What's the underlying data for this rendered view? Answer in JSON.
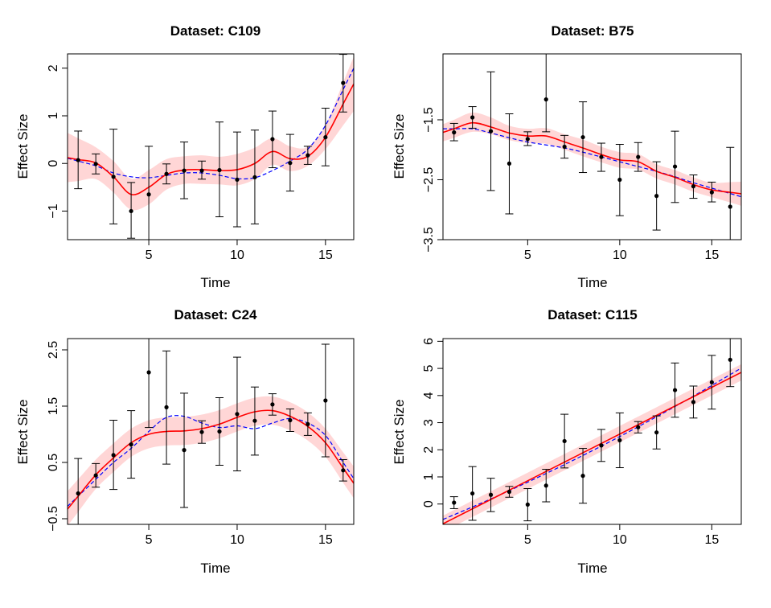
{
  "figure": {
    "layout": "2x2 grid of panels"
  },
  "colors": {
    "band": "#ffd6d6",
    "fit": "#ff0000",
    "truth": "#0000ff",
    "points": "#000000",
    "errorbars": "#000000"
  },
  "chart_data": [
    {
      "type": "line",
      "title": "Dataset: C109",
      "xlabel": "Time",
      "ylabel": "Effect Size",
      "xlim": [
        0.4,
        16.6
      ],
      "ylim": [
        -1.6,
        2.3
      ],
      "xticks": [
        5,
        10,
        15
      ],
      "yticks": [
        -1,
        0,
        1,
        2
      ],
      "ytick_labels": [
        "−1",
        "0",
        "1",
        "2"
      ],
      "grid": false,
      "legend": "none",
      "x": [
        1,
        2,
        3,
        4,
        5,
        6,
        7,
        8,
        9,
        10,
        11,
        12,
        13,
        14,
        15,
        16
      ],
      "points": [
        0.07,
        -0.01,
        -0.28,
        -1.0,
        -0.65,
        -0.22,
        -0.15,
        -0.15,
        -0.14,
        -0.34,
        -0.29,
        0.51,
        0.01,
        0.17,
        0.55,
        1.69
      ],
      "err_low": [
        -0.53,
        -0.22,
        -1.27,
        -1.57,
        -1.62,
        -0.43,
        -0.74,
        -0.33,
        -1.12,
        -1.33,
        -1.27,
        -0.09,
        -0.58,
        -0.02,
        -0.05,
        1.08
      ],
      "err_high": [
        0.68,
        0.2,
        0.72,
        -0.4,
        0.36,
        -0.01,
        0.45,
        0.05,
        0.87,
        0.66,
        0.7,
        1.1,
        0.61,
        0.36,
        1.16,
        2.29
      ],
      "series": [
        {
          "name": "fit",
          "style": "solid",
          "color": "#ff0000",
          "values": [
            0.08,
            0.01,
            -0.28,
            -0.65,
            -0.5,
            -0.23,
            -0.14,
            -0.13,
            -0.15,
            -0.13,
            0.0,
            0.25,
            0.1,
            0.15,
            0.55,
            1.25
          ]
        },
        {
          "name": "truth",
          "style": "dashed",
          "color": "#0000ff",
          "values": [
            0.05,
            -0.05,
            -0.2,
            -0.28,
            -0.3,
            -0.25,
            -0.2,
            -0.2,
            -0.25,
            -0.32,
            -0.3,
            -0.15,
            0.05,
            0.3,
            0.8,
            1.55
          ]
        }
      ],
      "band_low": [
        -0.37,
        -0.33,
        -0.61,
        -0.97,
        -0.86,
        -0.55,
        -0.43,
        -0.43,
        -0.44,
        -0.46,
        -0.33,
        -0.03,
        -0.16,
        -0.05,
        0.3,
        0.8
      ],
      "band_high": [
        0.53,
        0.34,
        0.05,
        -0.32,
        -0.14,
        0.09,
        0.15,
        0.17,
        0.14,
        0.2,
        0.33,
        0.53,
        0.36,
        0.35,
        0.8,
        1.7
      ]
    },
    {
      "type": "line",
      "title": "Dataset: B75",
      "xlabel": "Time",
      "ylabel": "Effect Size",
      "xlim": [
        0.4,
        16.6
      ],
      "ylim": [
        -3.5,
        -0.4
      ],
      "xticks": [
        5,
        10,
        15
      ],
      "yticks": [
        -3.5,
        -2.5,
        -1.5
      ],
      "ytick_labels": [
        "−3.5",
        "−2.5",
        "−1.5"
      ],
      "grid": false,
      "legend": "none",
      "x": [
        1,
        2,
        3,
        4,
        5,
        6,
        7,
        8,
        9,
        10,
        11,
        12,
        13,
        14,
        15,
        16
      ],
      "points": [
        -1.71,
        -1.46,
        -1.69,
        -2.23,
        -1.82,
        -1.16,
        -1.95,
        -1.79,
        -2.12,
        -2.5,
        -2.12,
        -2.77,
        -2.28,
        -2.61,
        -2.71,
        -2.95
      ],
      "err_low": [
        -1.85,
        -1.64,
        -2.68,
        -3.07,
        -1.93,
        -1.7,
        -2.14,
        -2.38,
        -2.36,
        -3.1,
        -2.36,
        -3.34,
        -2.88,
        -2.81,
        -2.87,
        -3.53
      ],
      "err_high": [
        -1.56,
        -1.28,
        -0.7,
        -1.4,
        -1.7,
        -0.4,
        -1.76,
        -1.2,
        -1.89,
        -1.91,
        -1.88,
        -2.2,
        -1.69,
        -2.42,
        -2.54,
        -1.96
      ],
      "series": [
        {
          "name": "fit",
          "style": "solid",
          "color": "#ff0000",
          "values": [
            -1.65,
            -1.55,
            -1.62,
            -1.72,
            -1.77,
            -1.77,
            -1.87,
            -1.97,
            -2.08,
            -2.17,
            -2.2,
            -2.36,
            -2.46,
            -2.58,
            -2.67,
            -2.71
          ]
        },
        {
          "name": "truth",
          "style": "dashed",
          "color": "#0000ff",
          "values": [
            -1.65,
            -1.65,
            -1.72,
            -1.8,
            -1.87,
            -1.92,
            -1.97,
            -2.04,
            -2.12,
            -2.2,
            -2.28,
            -2.36,
            -2.45,
            -2.55,
            -2.64,
            -2.73
          ]
        }
      ],
      "band_low": [
        -1.8,
        -1.7,
        -1.74,
        -1.84,
        -1.89,
        -1.9,
        -2.0,
        -2.11,
        -2.21,
        -2.3,
        -2.33,
        -2.48,
        -2.58,
        -2.7,
        -2.79,
        -2.88
      ],
      "band_high": [
        -1.5,
        -1.38,
        -1.46,
        -1.6,
        -1.65,
        -1.64,
        -1.74,
        -1.83,
        -1.95,
        -2.04,
        -2.07,
        -2.24,
        -2.34,
        -2.46,
        -2.55,
        -2.54
      ]
    },
    {
      "type": "line",
      "title": "Dataset: C24",
      "xlabel": "Time",
      "ylabel": "Effect Size",
      "xlim": [
        0.4,
        16.6
      ],
      "ylim": [
        -0.6,
        2.7
      ],
      "xticks": [
        5,
        10,
        15
      ],
      "yticks": [
        -0.5,
        0.5,
        1.5,
        2.5
      ],
      "ytick_labels": [
        "−0.5",
        "0.5",
        "1.5",
        "2.5"
      ],
      "grid": false,
      "legend": "none",
      "x": [
        1,
        2,
        3,
        4,
        5,
        6,
        7,
        8,
        9,
        10,
        11,
        12,
        13,
        14,
        15,
        16
      ],
      "points": [
        -0.05,
        0.27,
        0.63,
        0.82,
        2.1,
        1.48,
        0.72,
        1.04,
        1.05,
        1.36,
        1.24,
        1.53,
        1.25,
        1.18,
        1.6,
        0.36
      ],
      "err_low": [
        -0.62,
        0.06,
        0.02,
        0.22,
        1.12,
        0.47,
        -0.3,
        0.84,
        0.45,
        0.35,
        0.63,
        1.34,
        1.05,
        0.98,
        0.6,
        0.17
      ],
      "err_high": [
        0.57,
        0.48,
        1.25,
        1.42,
        3.1,
        2.48,
        1.73,
        1.24,
        1.65,
        2.37,
        1.84,
        1.72,
        1.45,
        1.38,
        2.6,
        0.55
      ],
      "series": [
        {
          "name": "fit",
          "style": "solid",
          "color": "#ff0000",
          "values": [
            -0.1,
            0.28,
            0.58,
            0.85,
            1.0,
            1.05,
            1.06,
            1.1,
            1.18,
            1.3,
            1.4,
            1.42,
            1.32,
            1.14,
            0.85,
            0.4
          ]
        },
        {
          "name": "truth",
          "style": "dashed",
          "color": "#0000ff",
          "values": [
            -0.1,
            0.2,
            0.5,
            0.75,
            1.05,
            1.3,
            1.32,
            1.2,
            1.12,
            1.15,
            1.1,
            1.2,
            1.28,
            1.2,
            0.98,
            0.5
          ]
        }
      ],
      "band_low": [
        -0.38,
        0.03,
        0.33,
        0.6,
        0.75,
        0.8,
        0.81,
        0.85,
        0.93,
        1.05,
        1.15,
        1.17,
        1.07,
        0.89,
        0.6,
        0.14
      ],
      "band_high": [
        0.2,
        0.55,
        0.84,
        1.1,
        1.25,
        1.3,
        1.31,
        1.35,
        1.43,
        1.55,
        1.65,
        1.67,
        1.57,
        1.39,
        1.1,
        0.68
      ]
    },
    {
      "type": "line",
      "title": "Dataset: C115",
      "xlabel": "Time",
      "ylabel": "Effect Size",
      "xlim": [
        0.4,
        16.6
      ],
      "ylim": [
        -0.75,
        6.1
      ],
      "xticks": [
        5,
        10,
        15
      ],
      "yticks": [
        0,
        1,
        2,
        3,
        4,
        5,
        6
      ],
      "ytick_labels": [
        "0",
        "1",
        "2",
        "3",
        "4",
        "5",
        "6"
      ],
      "grid": false,
      "legend": "none",
      "x": [
        1,
        2,
        3,
        4,
        5,
        6,
        7,
        8,
        9,
        10,
        11,
        12,
        13,
        14,
        15,
        16
      ],
      "points": [
        0.05,
        0.39,
        0.34,
        0.45,
        -0.02,
        0.68,
        2.32,
        1.04,
        2.16,
        2.35,
        2.83,
        2.64,
        4.2,
        3.76,
        4.49,
        5.32
      ],
      "err_low": [
        -0.17,
        -0.6,
        -0.28,
        0.25,
        -0.62,
        0.08,
        1.33,
        0.03,
        1.57,
        1.34,
        2.62,
        2.03,
        3.2,
        3.17,
        3.5,
        4.33
      ],
      "err_high": [
        0.27,
        1.38,
        0.95,
        0.65,
        0.57,
        1.28,
        3.31,
        2.05,
        2.75,
        3.36,
        3.04,
        3.25,
        5.2,
        4.35,
        5.48,
        6.3
      ]
    }
  ]
}
